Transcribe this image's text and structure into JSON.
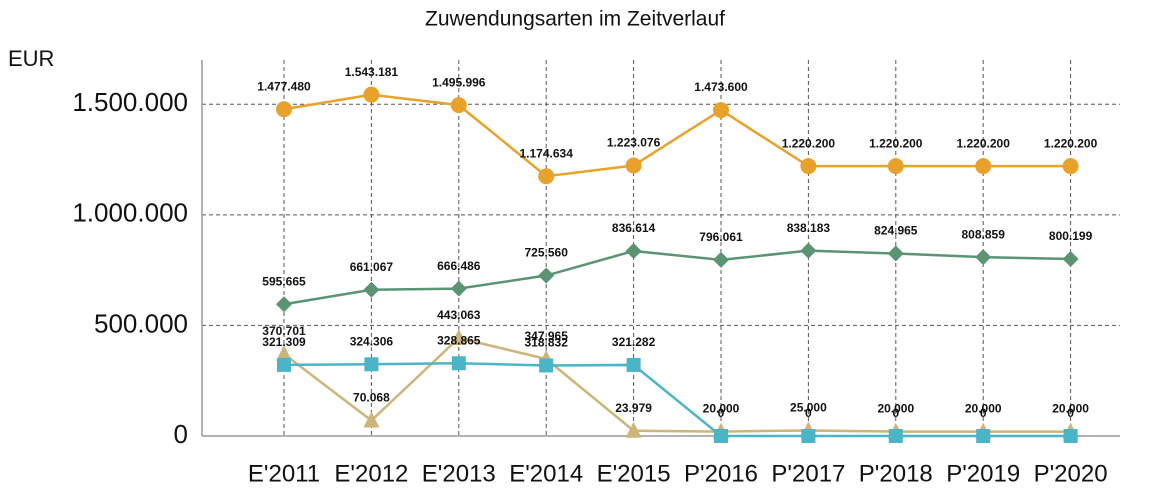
{
  "chart_data": {
    "type": "line",
    "title": "Zuwendungsarten im Zeitverlauf",
    "y_label": "EUR",
    "categories": [
      "E'2011",
      "E'2012",
      "E'2013",
      "E'2014",
      "E'2015",
      "P'2016",
      "P'2017",
      "P'2018",
      "P'2019",
      "P'2020"
    ],
    "ylim": [
      0,
      1700000
    ],
    "yticks": [
      0,
      {
        "value": 500000,
        "label": "500.000"
      },
      {
        "value": 1000000,
        "label": "1.000.000"
      },
      {
        "value": 1500000,
        "label": "1.500.000"
      }
    ],
    "grid": true,
    "series": [
      {
        "color": "#cdb57a",
        "marker": "triangle",
        "values": [
          370701,
          70068,
          443063,
          347965,
          23979,
          20000,
          25000,
          20000,
          20000,
          20000
        ],
        "value_labels": [
          "370.701",
          "70.068",
          "443.063",
          "347.965",
          "23.979",
          "20.000",
          "25.000",
          "20.000",
          "20.000",
          "20.000"
        ]
      },
      {
        "color": "#4bb5c8",
        "marker": "square",
        "values": [
          321309,
          324306,
          328865,
          318832,
          321282,
          0,
          0,
          0,
          0,
          0
        ],
        "value_labels": [
          "321.309",
          "324.306",
          "328.865",
          "318.832",
          "321.282",
          "0",
          "0",
          "0",
          "0",
          "0"
        ]
      },
      {
        "color": "#5a9473",
        "marker": "diamond",
        "values": [
          595665,
          661067,
          666486,
          725560,
          836614,
          796061,
          838183,
          824965,
          808859,
          800199
        ],
        "value_labels": [
          "595.665",
          "661.067",
          "666.486",
          "725.560",
          "836.614",
          "796.061",
          "838.183",
          "824.965",
          "808.859",
          "800.199"
        ]
      },
      {
        "color": "#e8a22b",
        "marker": "circle",
        "values": [
          1477480,
          1543181,
          1495996,
          1174634,
          1223076,
          1473600,
          1220200,
          1220200,
          1220200,
          1220200
        ],
        "value_labels": [
          "1.477.480",
          "1.543.181",
          "1.495.996",
          "1.174.634",
          "1.223.076",
          "1.473.600",
          "1.220.200",
          "1.220.200",
          "1.220.200",
          "1.220.200"
        ]
      }
    ]
  }
}
